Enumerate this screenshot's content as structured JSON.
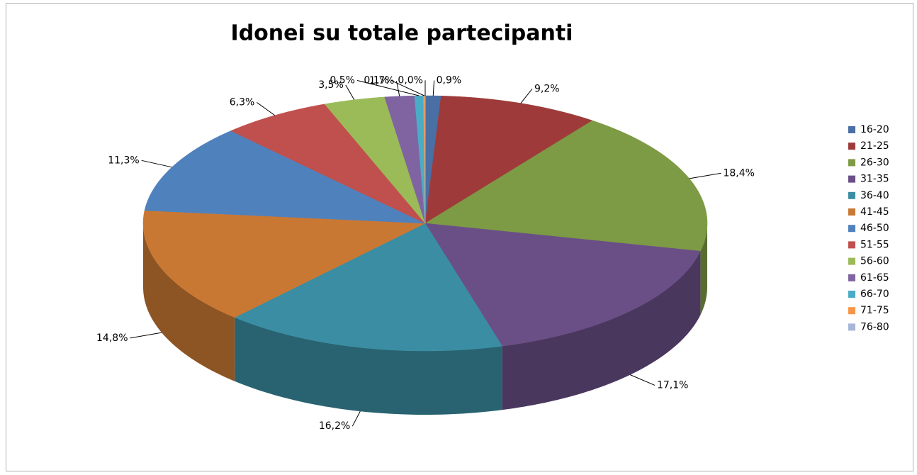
{
  "chart_data": {
    "type": "pie",
    "title": "Idonei su totale partecipanti",
    "categories": [
      "16-20",
      "21-25",
      "26-30",
      "31-35",
      "36-40",
      "41-45",
      "46-50",
      "51-55",
      "56-60",
      "61-65",
      "66-70",
      "71-75",
      "76-80"
    ],
    "values": [
      0.9,
      9.2,
      18.4,
      17.1,
      16.2,
      14.8,
      11.3,
      6.3,
      3.5,
      1.7,
      0.5,
      0.1,
      0.0
    ],
    "value_labels": [
      "0,9%",
      "9,2%",
      "18,4%",
      "17,1%",
      "16,2%",
      "14,8%",
      "11,3%",
      "6,3%",
      "3,5%",
      "1,7%",
      "0,5%",
      "0,1%",
      "0,0%"
    ],
    "colors": [
      "#4a6fa5",
      "#9e3b3a",
      "#7d9a45",
      "#6a4f86",
      "#3a8da2",
      "#c97834",
      "#4f81bd",
      "#c0504d",
      "#9bbb59",
      "#8064a2",
      "#4bacc6",
      "#f79646",
      "#a5b6d8"
    ],
    "legend": "right"
  }
}
